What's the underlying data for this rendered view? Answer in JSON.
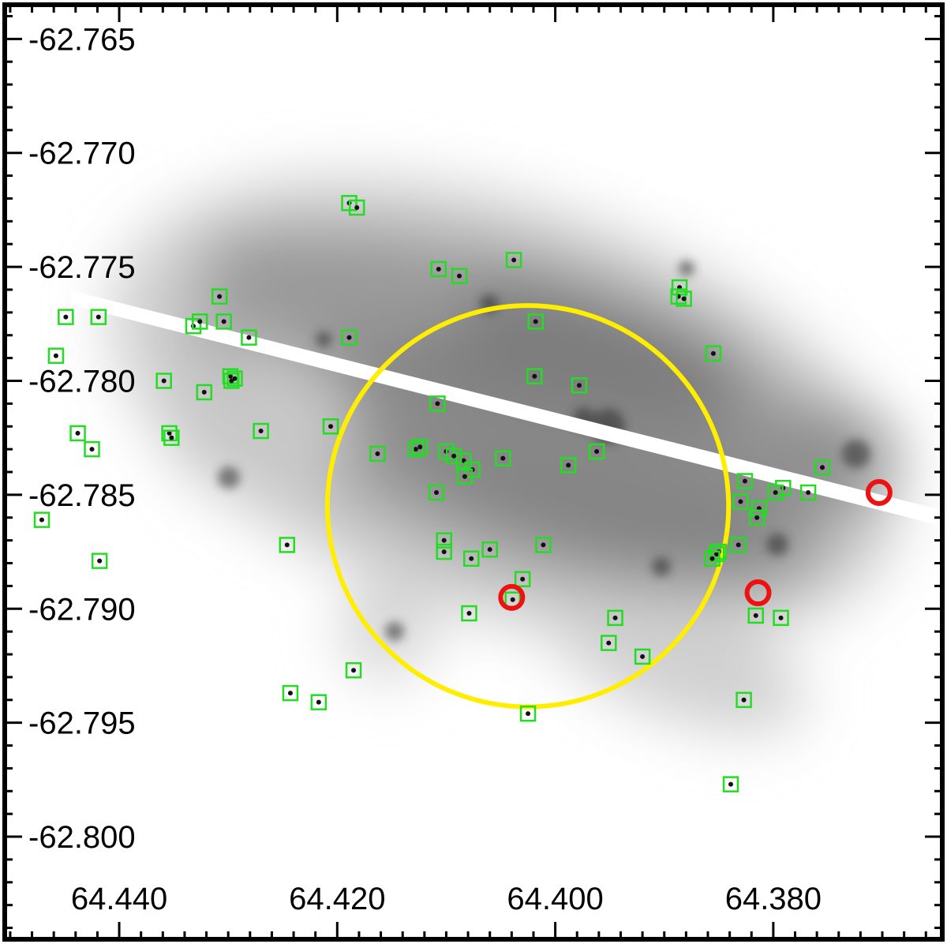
{
  "chart_data": {
    "type": "scatter",
    "title": "",
    "xlabel": "",
    "ylabel": "",
    "x_axis_reversed": true,
    "xlim": [
      64.4505,
      64.3645
    ],
    "ylim": [
      -62.8045,
      -62.7635
    ],
    "xticks": [
      64.44,
      64.42,
      64.4,
      64.38
    ],
    "xtick_labels": [
      "64.440",
      "64.420",
      "64.400",
      "64.380"
    ],
    "yticks": [
      -62.765,
      -62.77,
      -62.775,
      -62.78,
      -62.785,
      -62.79,
      -62.795,
      -62.8
    ],
    "ytick_labels": [
      "-62.765",
      "-62.770",
      "-62.775",
      "-62.780",
      "-62.785",
      "-62.790",
      "-62.795",
      "-62.800"
    ],
    "background": "grayscale galaxy image (inverted)",
    "aperture_circle": {
      "x": 64.4025,
      "y": -62.7855,
      "radius_x": 0.0184,
      "color": "#ffee00"
    },
    "colors": {
      "green_marker": "#22dd22",
      "red_marker": "#ee1111",
      "circle": "#ffee00",
      "stripe": "#ffffff"
    },
    "series": [
      {
        "marker": "square",
        "color": "#22dd22",
        "points": [
          [
            64.4189,
            -62.7722
          ],
          [
            64.4182,
            -62.7724
          ],
          [
            64.4038,
            -62.7747
          ],
          [
            64.4088,
            -62.7754
          ],
          [
            64.4107,
            -62.7751
          ],
          [
            64.4308,
            -62.7763
          ],
          [
            64.4449,
            -62.7772
          ],
          [
            64.4419,
            -62.7772
          ],
          [
            64.4332,
            -62.7776
          ],
          [
            64.4326,
            -62.7774
          ],
          [
            64.4304,
            -62.7774
          ],
          [
            64.4281,
            -62.7781
          ],
          [
            64.4189,
            -62.7781
          ],
          [
            64.4018,
            -62.7774
          ],
          [
            64.3886,
            -62.7759
          ],
          [
            64.3887,
            -62.7763
          ],
          [
            64.3882,
            -62.7764
          ],
          [
            64.3855,
            -62.7788
          ],
          [
            64.4458,
            -62.7789
          ],
          [
            64.4298,
            -62.7798
          ],
          [
            64.4294,
            -62.7799
          ],
          [
            64.4297,
            -62.78
          ],
          [
            64.4322,
            -62.7805
          ],
          [
            64.4359,
            -62.78
          ],
          [
            64.4019,
            -62.7798
          ],
          [
            64.3978,
            -62.7802
          ],
          [
            64.4108,
            -62.781
          ],
          [
            64.4206,
            -62.782
          ],
          [
            64.427,
            -62.7822
          ],
          [
            64.4438,
            -62.7823
          ],
          [
            64.4354,
            -62.7823
          ],
          [
            64.4352,
            -62.7825
          ],
          [
            64.4425,
            -62.783
          ],
          [
            64.4163,
            -62.7832
          ],
          [
            64.4128,
            -62.783
          ],
          [
            64.4124,
            -62.7829
          ],
          [
            64.41,
            -62.7831
          ],
          [
            64.4084,
            -62.7835
          ],
          [
            64.4093,
            -62.7833
          ],
          [
            64.4076,
            -62.7839
          ],
          [
            64.4048,
            -62.7834
          ],
          [
            64.3988,
            -62.7837
          ],
          [
            64.3962,
            -62.7831
          ],
          [
            64.4083,
            -62.7842
          ],
          [
            64.4109,
            -62.7849
          ],
          [
            64.3755,
            -62.7838
          ],
          [
            64.3826,
            -62.7844
          ],
          [
            64.3791,
            -62.7847
          ],
          [
            64.3768,
            -62.7849
          ],
          [
            64.3798,
            -62.7849
          ],
          [
            64.383,
            -62.7853
          ],
          [
            64.3813,
            -62.7856
          ],
          [
            64.3815,
            -62.786
          ],
          [
            64.4471,
            -62.7861
          ],
          [
            64.4246,
            -62.7872
          ],
          [
            64.4011,
            -62.7872
          ],
          [
            64.4102,
            -62.787
          ],
          [
            64.4102,
            -62.7875
          ],
          [
            64.406,
            -62.7874
          ],
          [
            64.4077,
            -62.7878
          ],
          [
            64.385,
            -62.7875
          ],
          [
            64.3852,
            -62.7876
          ],
          [
            64.3856,
            -62.7878
          ],
          [
            64.3832,
            -62.7872
          ],
          [
            64.4418,
            -62.7879
          ],
          [
            64.403,
            -62.7887
          ],
          [
            64.4039,
            -62.7896
          ],
          [
            64.3816,
            -62.7903
          ],
          [
            64.3793,
            -62.7904
          ],
          [
            64.4079,
            -62.7902
          ],
          [
            64.3945,
            -62.7904
          ],
          [
            64.3951,
            -62.7915
          ],
          [
            64.392,
            -62.7921
          ],
          [
            64.3827,
            -62.794
          ],
          [
            64.4185,
            -62.7927
          ],
          [
            64.4243,
            -62.7937
          ],
          [
            64.4217,
            -62.7941
          ],
          [
            64.4025,
            -62.7946
          ],
          [
            64.3839,
            -62.7977
          ]
        ]
      },
      {
        "marker": "circle",
        "color": "#ee1111",
        "points": [
          [
            64.3703,
            -62.7849
          ],
          [
            64.404,
            -62.7895
          ],
          [
            64.3814,
            -62.7893
          ]
        ]
      }
    ]
  }
}
